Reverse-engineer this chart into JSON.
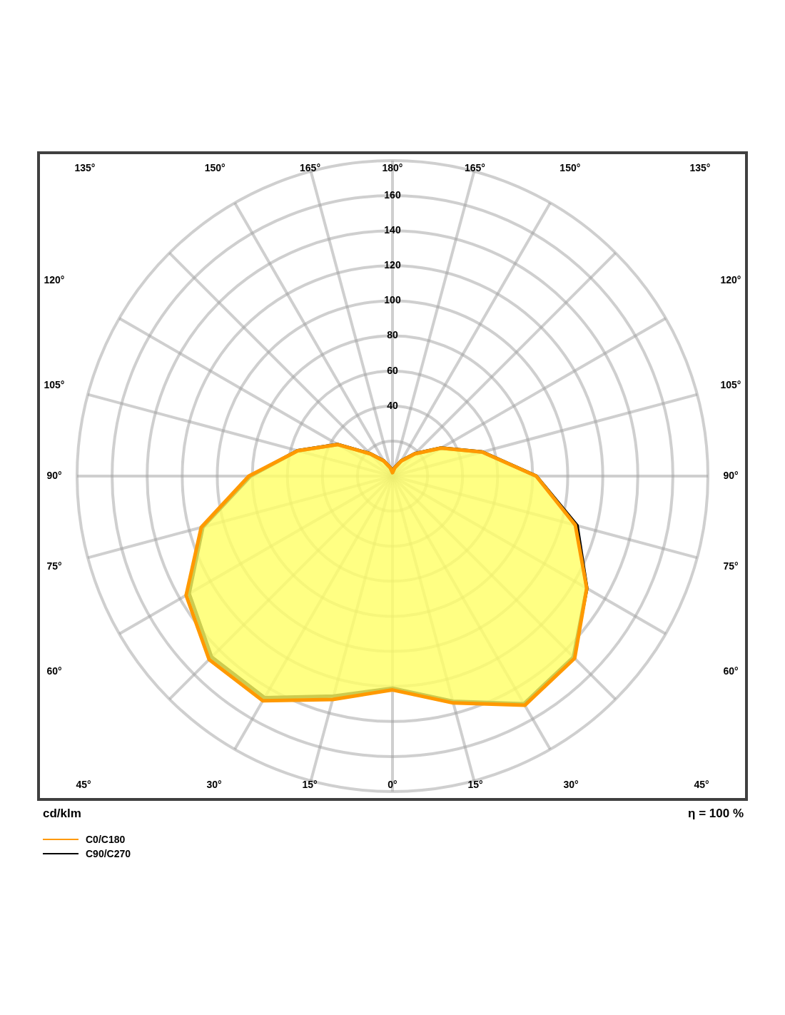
{
  "chart_data": {
    "type": "radar",
    "categories": [
      "180°",
      "165°",
      "150°",
      "135°",
      "120°",
      "105°",
      "90°",
      "75°",
      "60°",
      "45°",
      "30°",
      "15°",
      "0°",
      "15°",
      "30°",
      "45°",
      "60°",
      "75°",
      "90°",
      "105°",
      "120°",
      "135°",
      "150°",
      "165°"
    ],
    "series": [
      {
        "name": "C0/C180",
        "color": "#ff9900",
        "values": [
          2,
          5,
          10,
          18,
          32,
          53,
          82,
          108,
          128,
          147,
          151,
          134,
          122,
          132,
          148,
          148,
          136,
          113,
          82,
          56,
          36,
          18,
          10,
          5
        ]
      },
      {
        "name": "C90/C270",
        "color": "#000000",
        "values": [
          2,
          5,
          10,
          18,
          32,
          53,
          82,
          109,
          128,
          146,
          150,
          133,
          121,
          130,
          146,
          146,
          134,
          112,
          81,
          56,
          36,
          18,
          10,
          5
        ]
      }
    ],
    "ylim": [
      0,
      180
    ],
    "yticks": [
      40,
      60,
      80,
      100,
      120,
      140,
      160
    ],
    "grid": true,
    "legend": "bottom left",
    "annotations": [
      "cd/klm",
      "η = 100 %"
    ]
  }
}
